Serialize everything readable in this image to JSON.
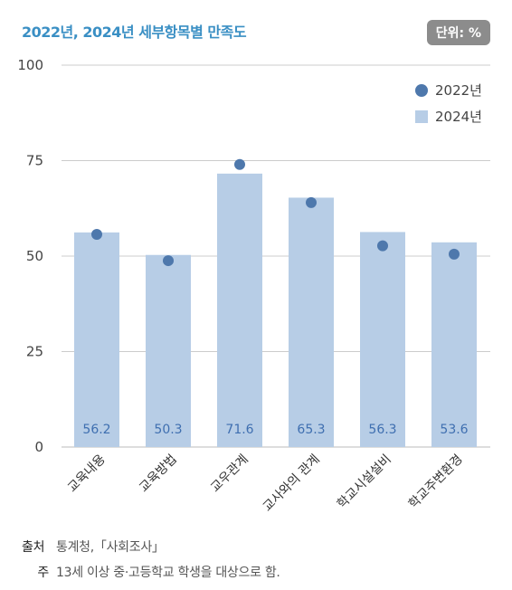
{
  "header": {
    "title": "2022년, 2024년 세부항목별 만족도",
    "unit": "단위: %"
  },
  "colors": {
    "bar": "#b7cde6",
    "dot": "#4e78ac",
    "grid": "#cccccc",
    "bar_label": "#3f6fb0"
  },
  "chart_data": {
    "type": "bar",
    "categories": [
      "교육내용",
      "교육방법",
      "교우관계",
      "교사와의 관계",
      "학교시설설비",
      "학교주변환경"
    ],
    "series": [
      {
        "name": "2024년",
        "kind": "bar",
        "values": [
          56.2,
          50.3,
          71.6,
          65.3,
          56.3,
          53.6
        ]
      },
      {
        "name": "2022년",
        "kind": "point",
        "values": [
          55.7,
          48.8,
          74.0,
          64.0,
          52.7,
          50.5
        ]
      }
    ],
    "yticks": [
      "0",
      "25",
      "50",
      "75",
      "100"
    ],
    "ylim": [
      0,
      100
    ],
    "grid": true,
    "legend": "top-right",
    "legend_order": [
      "2022년",
      "2024년"
    ]
  },
  "footer": {
    "source_label": "출처",
    "source_text": "통계청,「사회조사」",
    "note_label": "주",
    "note_text": "13세 이상 중·고등학교 학생을 대상으로 함."
  }
}
